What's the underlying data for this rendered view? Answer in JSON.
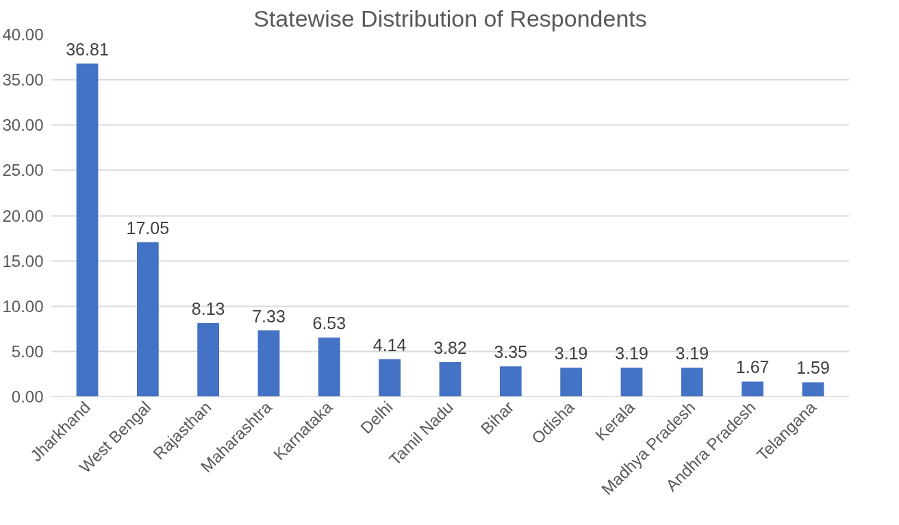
{
  "chart_data": {
    "type": "bar",
    "title": "Statewise Distribution of Respondents",
    "categories": [
      "Jharkhand",
      "West Bengal",
      "Rajasthan",
      "Maharashtra",
      "Karnataka",
      "Delhi",
      "Tamil Nadu",
      "Bihar",
      "Odisha",
      "Kerala",
      "Madhya Pradesh",
      "Andhra Pradesh",
      "Telangana"
    ],
    "values": [
      36.81,
      17.05,
      8.13,
      7.33,
      6.53,
      4.14,
      3.82,
      3.35,
      3.19,
      3.19,
      3.19,
      1.67,
      1.59
    ],
    "color": "#4472c4",
    "ylim": [
      0,
      40
    ],
    "yticks": [
      {
        "value": 0,
        "label": "0.00"
      },
      {
        "value": 5,
        "label": "5.00"
      },
      {
        "value": 10,
        "label": "10.00"
      },
      {
        "value": 15,
        "label": "15.00"
      },
      {
        "value": 20,
        "label": "20.00"
      },
      {
        "value": 25,
        "label": "25.00"
      },
      {
        "value": 30,
        "label": "30.00"
      },
      {
        "value": 35,
        "label": "35.00"
      },
      {
        "value": 40,
        "label": "40.00"
      }
    ],
    "grid": "y",
    "data_labels": true
  }
}
